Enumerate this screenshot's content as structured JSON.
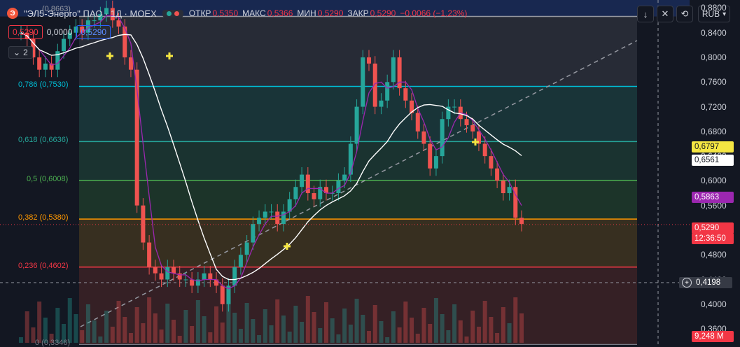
{
  "header": {
    "logo_letter": "Э",
    "title": "\"ЭЛ5-Энерго\" ПАО · 1Д · MOEX",
    "ohlc": [
      {
        "label": "ОТКР",
        "value": "0,5350"
      },
      {
        "label": "МАКС",
        "value": "0,5366"
      },
      {
        "label": "МИН",
        "value": "0,5290"
      },
      {
        "label": "ЗАКР",
        "value": "0,5290"
      },
      {
        "label": "",
        "value": "−0,0066 (−1,23%)"
      }
    ]
  },
  "prices": {
    "sell": "0,5290",
    "spread": "0,0000",
    "buy": "0,5290"
  },
  "indicator": {
    "count": "2"
  },
  "toolbar": {
    "down_icon": "arrow-down-icon",
    "collapse_icon": "collapse-icon",
    "reset_icon": "reset-icon",
    "currency": "RUB"
  },
  "colors": {
    "bg": "#131722",
    "up": "#26a69a",
    "down": "#ef5350",
    "ma": "#9c27b0",
    "ma_slow": "#ffffff"
  },
  "chart_data": {
    "type": "candlestick",
    "y_ticks": [
      "0,8800",
      "0,8400",
      "0,8000",
      "0,7600",
      "0,7200",
      "0,6800",
      "0,6400",
      "0,6000",
      "0,5600",
      "0,5200",
      "0,4800",
      "0,4400",
      "0,4000",
      "0,3600"
    ],
    "ylim": [
      0.334,
      0.893
    ],
    "grid": true,
    "fib_levels": [
      {
        "ratio": "0.786",
        "price": "0.7530",
        "label": "0,786 (0,7530)",
        "color": "#00bcd4"
      },
      {
        "ratio": "0.618",
        "price": "0.6636",
        "label": "0,618 (0,6636)",
        "color": "#26a69a"
      },
      {
        "ratio": "0.5",
        "price": "0.6008",
        "label": "0,5 (0,6008)",
        "color": "#4caf50"
      },
      {
        "ratio": "0.382",
        "price": "0.5380",
        "label": "0,382 (0,5380)",
        "color": "#ff9800"
      },
      {
        "ratio": "0.236",
        "price": "0.4602",
        "label": "0,236 (0,4602)",
        "color": "#f23645"
      },
      {
        "ratio": "0",
        "price": "0.3346",
        "label": "0 (0,3346)",
        "color": "#787b86"
      }
    ],
    "fib_top_price": 0.8663,
    "fib_top_label": "(0,8663)",
    "close_series": [
      0.84,
      0.83,
      0.8,
      0.78,
      0.79,
      0.78,
      0.81,
      0.83,
      0.84,
      0.85,
      0.84,
      0.86,
      0.86,
      0.87,
      0.88,
      0.86,
      0.85,
      0.8,
      0.78,
      0.56,
      0.5,
      0.46,
      0.45,
      0.44,
      0.46,
      0.45,
      0.44,
      0.44,
      0.43,
      0.44,
      0.45,
      0.44,
      0.43,
      0.4,
      0.43,
      0.46,
      0.48,
      0.5,
      0.53,
      0.54,
      0.55,
      0.55,
      0.53,
      0.55,
      0.57,
      0.59,
      0.61,
      0.58,
      0.57,
      0.59,
      0.58,
      0.58,
      0.6,
      0.61,
      0.66,
      0.72,
      0.8,
      0.79,
      0.72,
      0.73,
      0.76,
      0.8,
      0.75,
      0.73,
      0.71,
      0.68,
      0.66,
      0.62,
      0.64,
      0.7,
      0.72,
      0.72,
      0.7,
      0.69,
      0.68,
      0.66,
      0.64,
      0.62,
      0.6,
      0.58,
      0.59,
      0.54,
      0.53
    ],
    "volume_axis_label": "9,248 M",
    "badges": [
      {
        "text": "0,6797",
        "bg": "#f5e642",
        "color": "#131722"
      },
      {
        "text": "0,6561",
        "bg": "#ffffff",
        "color": "#131722"
      },
      {
        "text": "0,5863",
        "bg": "#9c27b0",
        "color": "#ffffff"
      },
      {
        "text": "0,5290",
        "bg": "#f23645",
        "color": "#ffffff"
      },
      {
        "text": "12:36:50",
        "bg": "#f23645",
        "color": "#ffffff"
      }
    ],
    "crosshair_price": "0,4198"
  }
}
